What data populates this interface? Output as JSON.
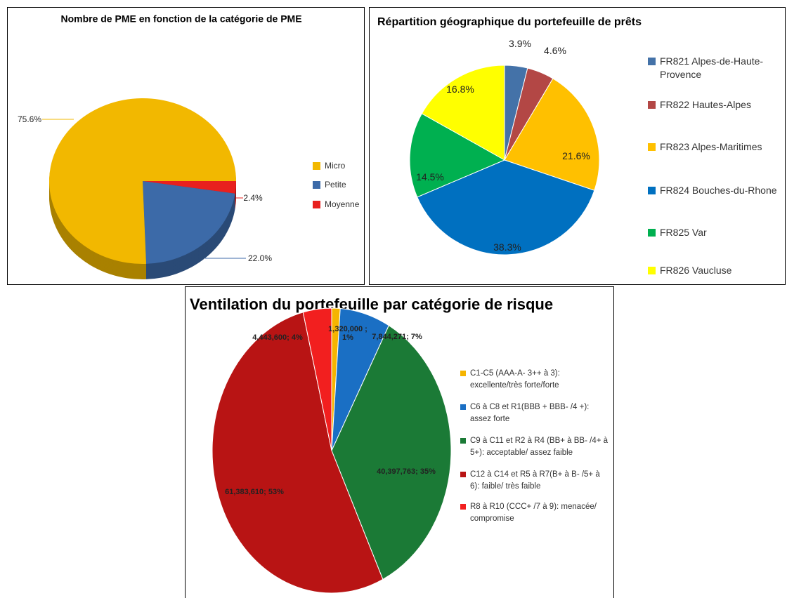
{
  "chart_data": [
    {
      "type": "pie",
      "title": "Nombre de PME en fonction de la catégorie de PME",
      "categories": [
        "Micro",
        "Petite",
        "Moyenne"
      ],
      "values": [
        75.6,
        22.0,
        2.4
      ],
      "value_labels": [
        "75.6%",
        "22.0%",
        "2.4%"
      ],
      "colors": [
        "#f2b800",
        "#3c6aa8",
        "#e8201e"
      ],
      "legend": "right"
    },
    {
      "type": "pie",
      "title": "Répartition géographique du portefeuille de prêts",
      "categories": [
        "FR821 Alpes-de-Haute-Provence",
        "FR822 Hautes-Alpes",
        "FR823 Alpes-Maritimes",
        "FR824 Bouches-du-Rhone",
        "FR825 Var",
        "FR826 Vaucluse"
      ],
      "values": [
        3.9,
        4.6,
        21.6,
        38.3,
        14.5,
        16.8
      ],
      "value_labels": [
        "3.9%",
        "4.6%",
        "21.6%",
        "38.3%",
        "14.5%",
        "16.8%"
      ],
      "colors": [
        "#4472a8",
        "#b34745",
        "#ffc000",
        "#0070c0",
        "#00b050",
        "#ffff00"
      ],
      "legend": "right"
    },
    {
      "type": "pie",
      "title": "Ventilation du portefeuille par catégorie de risque",
      "categories": [
        "C1-C5 (AAA-A- 3++ à 3): excellente/très forte/forte",
        "C6 à C8 et R1(BBB + BBB- /4 +): assez forte",
        "C9 à C11 et R2 à R4 (BB+ à BB- /4+ à 5+): acceptable/ assez faible",
        "C12 à C14 et R5 à R7(B+ à B- /5+ à 6): faible/ très faible",
        "R8 à R10 (CCC+ /7 à 9): menacée/ compromise"
      ],
      "values": [
        1320000,
        7844271,
        40397763,
        61383610,
        4443600
      ],
      "value_labels": [
        "1,320,000 ; 1%",
        "7,844,271; 7%",
        "40,397,763; 35%",
        "61,383,610; 53%",
        "4,443,600; 4%"
      ],
      "colors": [
        "#f5b400",
        "#1a6fc4",
        "#1b7a36",
        "#b81414",
        "#f21f1f"
      ],
      "legend": "right"
    }
  ]
}
